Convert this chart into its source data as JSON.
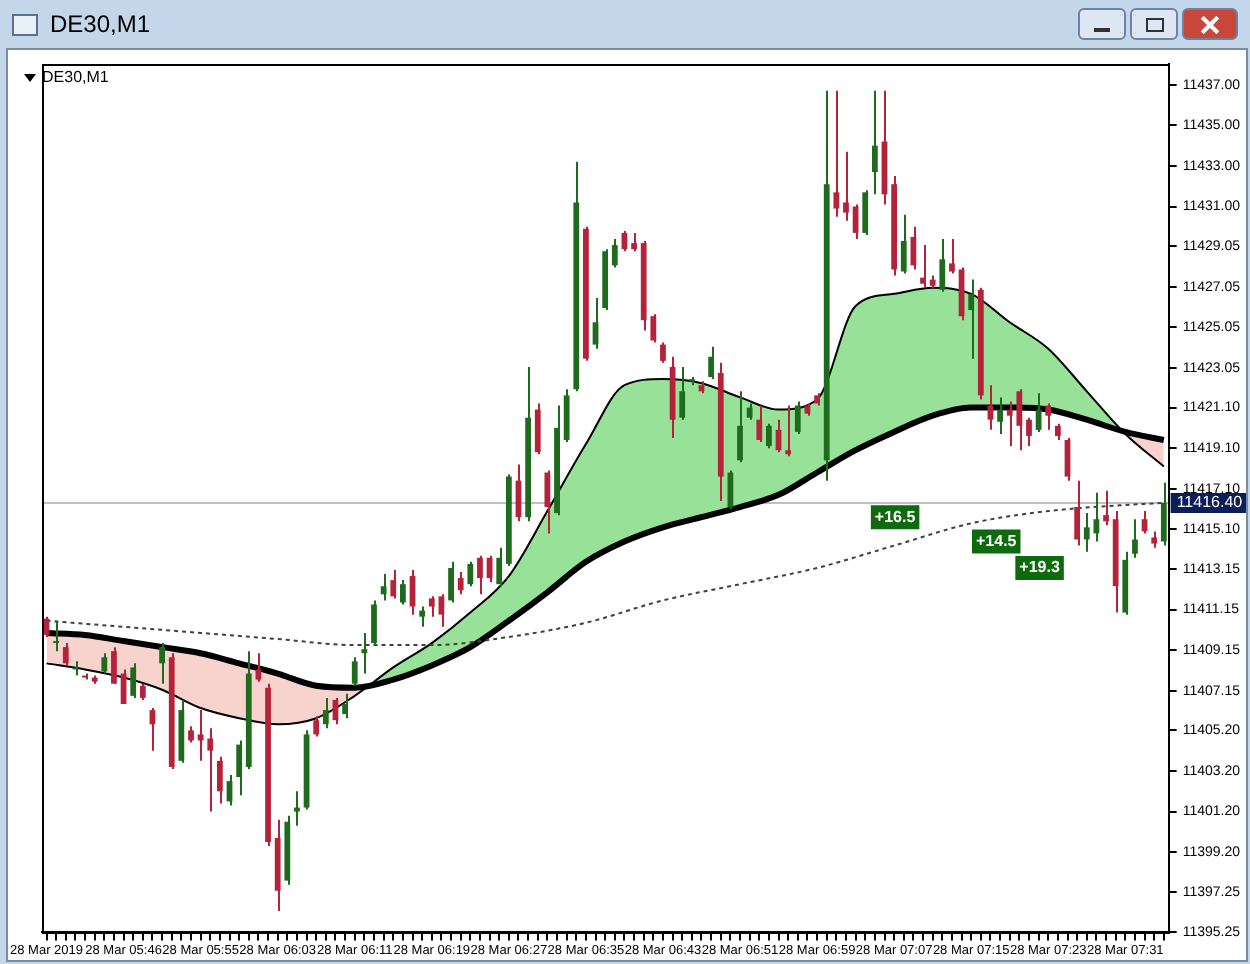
{
  "chart_data": {
    "type": "candlestick",
    "title": "DE30,M1",
    "categories": [
      "28 Mar 2019",
      null,
      null,
      null,
      null,
      null,
      null,
      null,
      "28 Mar 05:46",
      null,
      null,
      null,
      null,
      null,
      null,
      null,
      "28 Mar 05:55",
      null,
      null,
      null,
      null,
      null,
      null,
      null,
      "28 Mar 06:03",
      null,
      null,
      null,
      null,
      null,
      null,
      null,
      "28 Mar 06:11",
      null,
      null,
      null,
      null,
      null,
      null,
      null,
      "28 Mar 06:19",
      null,
      null,
      null,
      null,
      null,
      null,
      null,
      "28 Mar 06:27",
      null,
      null,
      null,
      null,
      null,
      null,
      null,
      "28 Mar 06:35",
      null,
      null,
      null,
      null,
      null,
      null,
      null,
      "28 Mar 06:43",
      null,
      null,
      null,
      null,
      null,
      null,
      null,
      "28 Mar 06:51",
      null,
      null,
      null,
      null,
      null,
      null,
      null,
      "28 Mar 06:59",
      null,
      null,
      null,
      null,
      null,
      null,
      null,
      "28 Mar 07:07",
      null,
      null,
      null,
      null,
      null,
      null,
      null,
      "28 Mar 07:15",
      null,
      null,
      null,
      null,
      null,
      null,
      null,
      "28 Mar 07:23",
      null,
      null,
      null,
      null,
      null,
      null,
      null,
      "28 Mar 07:31",
      null,
      null,
      null,
      null
    ],
    "ohlc": [
      [
        11410.7,
        11410.8,
        11409.8,
        11409.9
      ],
      [
        11409.6,
        11410.6,
        11409.1,
        11409.6
      ],
      [
        11409.3,
        11409.5,
        11408.4,
        11408.5
      ],
      [
        11408.3,
        11408.6,
        11407.9,
        11408.3
      ],
      [
        11407.9,
        11408.0,
        11407.7,
        11407.8
      ],
      [
        11407.8,
        11407.9,
        11407.5,
        11407.6
      ],
      [
        11408.1,
        11409.0,
        11408.0,
        11408.8
      ],
      [
        11409.1,
        11409.3,
        11407.5,
        11407.5
      ],
      [
        11408.0,
        11408.2,
        11406.5,
        11406.5
      ],
      [
        11406.9,
        11408.5,
        11406.8,
        11408.3
      ],
      [
        11407.4,
        11407.5,
        11406.7,
        11406.8
      ],
      [
        11406.2,
        11406.3,
        11404.2,
        11405.5
      ],
      [
        11408.5,
        11409.5,
        11407.5,
        11409.3
      ],
      [
        11408.8,
        11409.0,
        11403.3,
        11403.4
      ],
      [
        11403.7,
        11406.7,
        11403.6,
        11406.2
      ],
      [
        11405.2,
        11405.4,
        11404.6,
        11404.7
      ],
      [
        11405.0,
        11406.2,
        11403.7,
        11404.7
      ],
      [
        11404.8,
        11405.3,
        11401.2,
        11404.2
      ],
      [
        11403.7,
        11403.9,
        11401.6,
        11402.2
      ],
      [
        11401.7,
        11403.0,
        11401.5,
        11402.7
      ],
      [
        11402.9,
        11404.7,
        11402.0,
        11404.5
      ],
      [
        11403.4,
        11409.1,
        11403.3,
        11408.0
      ],
      [
        11408.2,
        11409.0,
        11407.6,
        11407.7
      ],
      [
        11407.3,
        11407.5,
        11399.5,
        11399.7
      ],
      [
        11399.9,
        11400.8,
        11396.3,
        11397.3
      ],
      [
        11397.8,
        11401.0,
        11397.6,
        11400.7
      ],
      [
        11401.2,
        11402.2,
        11400.5,
        11401.4
      ],
      [
        11401.4,
        11405.2,
        11401.3,
        11405.0
      ],
      [
        11405.7,
        11405.9,
        11404.9,
        11405.0
      ],
      [
        11405.5,
        11406.8,
        11405.3,
        11406.2
      ],
      [
        11406.7,
        11406.8,
        11405.5,
        11405.7
      ],
      [
        11406.0,
        11407.0,
        11405.8,
        11406.5
      ],
      [
        11407.5,
        11408.8,
        11407.4,
        11408.6
      ],
      [
        11409.0,
        11410.0,
        11408.0,
        11409.2
      ],
      [
        11409.5,
        11411.6,
        11409.4,
        11411.4
      ],
      [
        11411.9,
        11412.9,
        11411.6,
        11412.3
      ],
      [
        11412.6,
        11413.1,
        11411.7,
        11411.8
      ],
      [
        11411.5,
        11412.6,
        11411.4,
        11412.4
      ],
      [
        11412.8,
        11413.1,
        11410.9,
        11411.3
      ],
      [
        11410.8,
        11411.3,
        11410.3,
        11411.1
      ],
      [
        11411.7,
        11411.8,
        11410.8,
        11411.3
      ],
      [
        11411.8,
        11411.9,
        11410.3,
        11410.9
      ],
      [
        11411.6,
        11413.5,
        11411.5,
        11413.2
      ],
      [
        11412.7,
        11413.0,
        11411.9,
        11412.1
      ],
      [
        11412.4,
        11413.5,
        11412.3,
        11413.4
      ],
      [
        11413.7,
        11413.8,
        11411.9,
        11412.7
      ],
      [
        11413.7,
        11413.8,
        11412.5,
        11412.7
      ],
      [
        11412.4,
        11414.2,
        11412.3,
        11413.7
      ],
      [
        11413.4,
        11417.8,
        11413.3,
        11417.7
      ],
      [
        11417.5,
        11418.3,
        11415.5,
        11415.7
      ],
      [
        11415.7,
        11423.1,
        11415.5,
        11420.6
      ],
      [
        11421.0,
        11421.3,
        11418.8,
        11418.9
      ],
      [
        11417.9,
        11418.0,
        11414.9,
        11416.2
      ],
      [
        11415.9,
        11421.2,
        11415.8,
        11420.1
      ],
      [
        11419.5,
        11422.0,
        11419.4,
        11421.7
      ],
      [
        11422.0,
        11433.2,
        11421.9,
        11431.2
      ],
      [
        11429.9,
        11430.0,
        11423.4,
        11423.5
      ],
      [
        11424.2,
        11426.5,
        11424.0,
        11425.3
      ],
      [
        11426.0,
        11428.9,
        11425.9,
        11428.8
      ],
      [
        11428.1,
        11429.4,
        11428.0,
        11429.1
      ],
      [
        11429.7,
        11429.8,
        11428.8,
        11428.9
      ],
      [
        11429.2,
        11429.7,
        11428.8,
        11428.9
      ],
      [
        11429.2,
        11429.3,
        11424.9,
        11425.4
      ],
      [
        11425.6,
        11425.7,
        11424.3,
        11424.4
      ],
      [
        11424.2,
        11424.3,
        11423.3,
        11423.4
      ],
      [
        11423.1,
        11423.6,
        11419.6,
        11420.5
      ],
      [
        11420.6,
        11423.1,
        11420.5,
        11421.9
      ],
      [
        11422.5,
        11422.6,
        11422.2,
        11422.5
      ],
      [
        11422.2,
        11422.4,
        11421.8,
        11421.9
      ],
      [
        11422.6,
        11424.1,
        11422.5,
        11423.6
      ],
      [
        11422.8,
        11423.3,
        11416.5,
        11417.7
      ],
      [
        11416.2,
        11418.0,
        11416.1,
        11417.9
      ],
      [
        11418.5,
        11421.9,
        11418.4,
        11420.2
      ],
      [
        11420.6,
        11421.3,
        11420.5,
        11421.1
      ],
      [
        11420.5,
        11421.2,
        11419.4,
        11419.5
      ],
      [
        11419.2,
        11420.3,
        11419.1,
        11420.2
      ],
      [
        11420.0,
        11420.5,
        11418.9,
        11419.0
      ],
      [
        11419.0,
        11421.2,
        11418.7,
        11418.8
      ],
      [
        11419.9,
        11421.4,
        11419.8,
        11421.2
      ],
      [
        11421.2,
        11421.3,
        11420.7,
        11420.8
      ],
      [
        11421.7,
        11421.8,
        11421.2,
        11421.3
      ],
      [
        11418.5,
        11436.7,
        11417.5,
        11432.1
      ],
      [
        11431.7,
        11436.7,
        11430.5,
        11430.9
      ],
      [
        11431.2,
        11433.7,
        11430.3,
        11430.7
      ],
      [
        11431.0,
        11431.1,
        11429.4,
        11429.7
      ],
      [
        11429.7,
        11431.8,
        11429.6,
        11431.7
      ],
      [
        11432.7,
        11436.7,
        11431.6,
        11434.0
      ],
      [
        11434.2,
        11436.7,
        11431.1,
        11431.6
      ],
      [
        11432.1,
        11432.5,
        11427.6,
        11427.9
      ],
      [
        11427.8,
        11430.6,
        11427.7,
        11429.3
      ],
      [
        11429.5,
        11430.0,
        11427.9,
        11428.1
      ],
      [
        11427.5,
        11429.1,
        11427.0,
        11427.2
      ],
      [
        11427.4,
        11427.6,
        11427.0,
        11427.1
      ],
      [
        11426.9,
        11429.4,
        11426.8,
        11428.4
      ],
      [
        11428.2,
        11429.4,
        11427.7,
        11427.8
      ],
      [
        11427.9,
        11428.0,
        11425.4,
        11425.6
      ],
      [
        11425.9,
        11427.4,
        11423.5,
        11426.7
      ],
      [
        11426.9,
        11427.0,
        11421.5,
        11421.7
      ],
      [
        11421.2,
        11422.2,
        11420.0,
        11420.5
      ],
      [
        11420.4,
        11421.6,
        11419.8,
        11421.0
      ],
      [
        11421.0,
        11421.4,
        11419.2,
        11420.7
      ],
      [
        11421.9,
        11422.0,
        11419.0,
        11420.2
      ],
      [
        11420.5,
        11420.6,
        11419.2,
        11419.7
      ],
      [
        11420.0,
        11421.8,
        11419.9,
        11421.0
      ],
      [
        11421.2,
        11421.3,
        11420.0,
        11420.7
      ],
      [
        11420.2,
        11420.3,
        11419.5,
        11419.7
      ],
      [
        11419.5,
        11419.6,
        11417.5,
        11417.7
      ],
      [
        11416.2,
        11417.5,
        11414.3,
        11414.6
      ],
      [
        11414.6,
        11415.9,
        11414.0,
        11415.2
      ],
      [
        11414.9,
        11416.9,
        11414.5,
        11415.6
      ],
      [
        11415.8,
        11417.0,
        11415.3,
        11415.5
      ],
      [
        11415.6,
        11416.0,
        11411.0,
        11412.3
      ],
      [
        11411.0,
        11414.0,
        11410.9,
        11413.6
      ],
      [
        11413.9,
        11415.6,
        11413.7,
        11414.6
      ],
      [
        11415.6,
        11416.0,
        11414.9,
        11415.0
      ],
      [
        11414.7,
        11415.0,
        11414.2,
        11414.4
      ],
      [
        11414.5,
        11417.4,
        11414.3,
        11416.4
      ]
    ],
    "series": [
      {
        "type": "line",
        "color": "#000000",
        "values": [
          11410.0,
          null,
          null,
          null,
          11409.9,
          null,
          null,
          null,
          11409.6,
          null,
          null,
          null,
          11409.3,
          null,
          null,
          null,
          11409.0,
          null,
          null,
          null,
          11408.5,
          null,
          null,
          null,
          11408.0,
          null,
          null,
          null,
          11407.4,
          null,
          null,
          null,
          11407.3,
          null,
          null,
          null,
          11407.7,
          null,
          null,
          null,
          11408.4,
          null,
          null,
          null,
          11409.3,
          null,
          null,
          null,
          11410.6,
          null,
          null,
          null,
          11412.0,
          null,
          null,
          null,
          11413.5,
          null,
          null,
          null,
          11414.5,
          null,
          null,
          null,
          11415.2,
          null,
          null,
          null,
          11415.7,
          null,
          null,
          null,
          11416.2,
          null,
          null,
          null,
          11416.8,
          null,
          null,
          null,
          11417.9,
          null,
          null,
          null,
          11419.0,
          null,
          null,
          null,
          11419.9,
          null,
          null,
          null,
          11420.7,
          null,
          null,
          null,
          11421.1,
          null,
          null,
          null,
          11421.1,
          null,
          null,
          null,
          11421.0,
          null,
          null,
          null,
          11420.5,
          null,
          null,
          null,
          11419.9,
          null,
          null,
          null,
          11419.5
        ]
      },
      {
        "type": "line",
        "color": "#000000",
        "values": [
          11408.5,
          null,
          null,
          null,
          11408.2,
          null,
          null,
          null,
          11407.8,
          null,
          null,
          null,
          11407.2,
          null,
          null,
          null,
          11406.3,
          null,
          null,
          null,
          11405.8,
          null,
          null,
          null,
          11405.5,
          null,
          null,
          null,
          11405.8,
          null,
          null,
          null,
          11406.9,
          null,
          null,
          null,
          11408.3,
          null,
          null,
          null,
          11409.5,
          null,
          null,
          null,
          11411.0,
          null,
          null,
          null,
          11412.8,
          null,
          null,
          null,
          11416.0,
          null,
          null,
          null,
          11419.3,
          null,
          null,
          null,
          11422.2,
          null,
          null,
          null,
          11422.5,
          null,
          null,
          null,
          11422.3,
          null,
          null,
          null,
          11421.6,
          null,
          null,
          null,
          11421.0,
          null,
          null,
          null,
          11421.5,
          null,
          null,
          null,
          11426.1,
          null,
          null,
          null,
          11426.7,
          null,
          null,
          null,
          11427.0,
          null,
          null,
          null,
          11426.7,
          null,
          null,
          null,
          11425.3,
          null,
          null,
          null,
          11424.0,
          null,
          null,
          null,
          11421.9,
          null,
          null,
          null,
          11419.8,
          null,
          null,
          null,
          11418.2
        ]
      },
      {
        "type": "line",
        "color": "#404040",
        "line_style": "dotted",
        "values": [
          11410.6,
          null,
          null,
          null,
          null,
          null,
          null,
          null,
          11410.3,
          null,
          null,
          null,
          null,
          null,
          null,
          null,
          11410.0,
          null,
          null,
          null,
          null,
          null,
          null,
          null,
          11409.7,
          null,
          null,
          null,
          null,
          null,
          null,
          null,
          11409.4,
          null,
          null,
          null,
          null,
          null,
          null,
          null,
          11409.4,
          null,
          null,
          null,
          null,
          null,
          null,
          null,
          11409.8,
          null,
          null,
          null,
          null,
          null,
          null,
          null,
          11410.5,
          null,
          null,
          null,
          null,
          null,
          null,
          null,
          11411.6,
          null,
          null,
          null,
          null,
          null,
          null,
          null,
          11412.4,
          null,
          null,
          null,
          null,
          null,
          null,
          null,
          11413.2,
          null,
          null,
          null,
          null,
          null,
          null,
          null,
          11414.3,
          null,
          null,
          null,
          null,
          null,
          null,
          null,
          11415.4,
          null,
          null,
          null,
          null,
          null,
          null,
          null,
          11416.0,
          null,
          null,
          null,
          null,
          null,
          null,
          null,
          11416.3,
          null,
          null,
          null,
          11416.4
        ]
      }
    ],
    "ylim": [
      11395.25,
      11438
    ],
    "yticks": [
      11395.25,
      11397.25,
      {
        "value": 11399.2,
        "label": "11399.20"
      },
      {
        "value": 11401.2,
        "label": "11401.20"
      },
      {
        "value": 11403.2,
        "label": "11403.20"
      },
      {
        "value": 11405.2,
        "label": "11405.20"
      },
      11407.15,
      11409.15,
      11411.15,
      11413.15,
      {
        "value": 11415.1,
        "label": "11415.10"
      },
      {
        "value": 11417.1,
        "label": "11417.10"
      },
      {
        "value": 11419.1,
        "label": "11419.10"
      },
      {
        "value": 11421.1,
        "label": "11421.10"
      },
      11423.05,
      11425.05,
      11427.05,
      11429.05,
      {
        "value": 11431,
        "label": "11431.00"
      },
      {
        "value": 11433,
        "label": "11433.00"
      },
      {
        "value": 11435,
        "label": "11435.00"
      },
      {
        "value": 11437,
        "label": "11437.00"
      }
    ],
    "ref_lines": [
      {
        "axis": "y",
        "value": 11416.4,
        "label": "11416.40",
        "color": "#c0c0c0"
      }
    ],
    "annotations": [
      {
        "text": "+16.5",
        "y": 11415.7
      },
      {
        "text": "+14.5",
        "y": 11414.5
      },
      {
        "text": "+19.3",
        "y": 11413.2
      }
    ],
    "marker": "none",
    "grid": false,
    "legend": false
  }
}
